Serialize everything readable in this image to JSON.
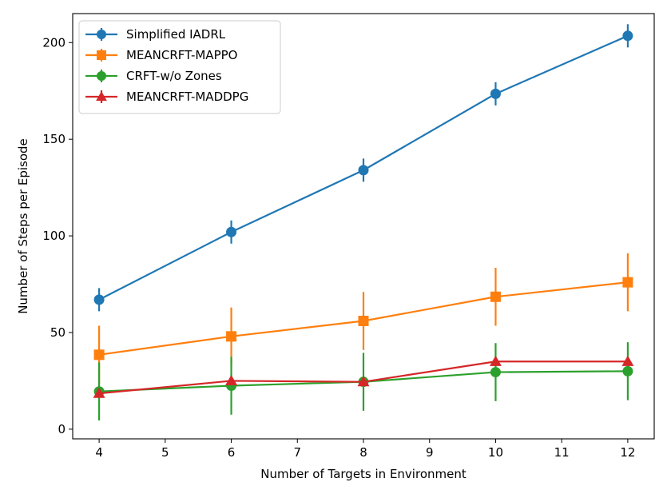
{
  "chart_data": {
    "type": "line",
    "xlabel": "Number of Targets in Environment",
    "ylabel": "Number of Steps per Episode",
    "xlim": [
      3.6,
      12.4
    ],
    "ylim": [
      -5,
      215
    ],
    "x_ticks": [
      4,
      5,
      6,
      7,
      8,
      9,
      10,
      11,
      12
    ],
    "y_ticks": [
      0,
      50,
      100,
      150,
      200
    ],
    "legend_position": "top-left",
    "grid": false,
    "x": [
      4,
      6,
      8,
      10,
      12
    ],
    "series": [
      {
        "name": "Simplified IADRL",
        "color": "#1f77b4",
        "marker": "circle",
        "values": [
          67,
          102,
          134,
          173.5,
          203.5
        ],
        "errors": [
          6,
          6,
          6,
          6,
          6
        ]
      },
      {
        "name": "MEANCRFT-MAPPO",
        "color": "#ff7f0e",
        "marker": "square",
        "values": [
          38.5,
          48,
          56,
          68.5,
          76
        ],
        "errors": [
          15,
          15,
          15,
          15,
          15
        ]
      },
      {
        "name": "CRFT-w/o Zones",
        "color": "#2ca02c",
        "marker": "circle",
        "values": [
          19.5,
          22.5,
          24.5,
          29.5,
          30
        ],
        "errors": [
          15,
          15,
          15,
          15,
          15
        ]
      },
      {
        "name": "MEANCRFT-MADDPG",
        "color": "#d62728",
        "marker": "triangle",
        "values": [
          18.5,
          25,
          24.5,
          35,
          35
        ],
        "errors": [
          0,
          0,
          0,
          0,
          0
        ]
      }
    ]
  }
}
